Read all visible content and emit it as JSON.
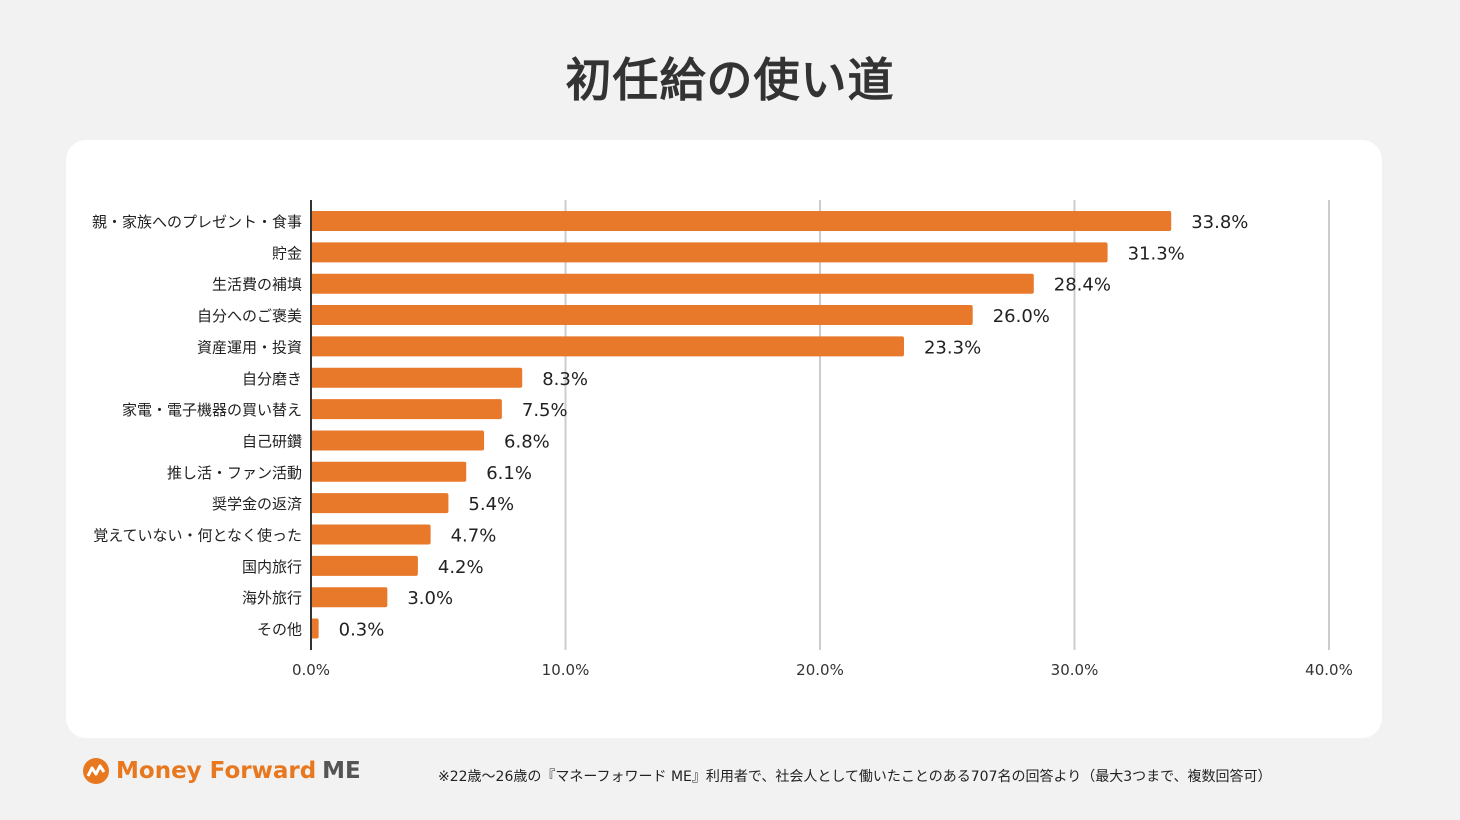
{
  "title": "初任給の使い道",
  "chart_data": {
    "type": "bar",
    "orientation": "horizontal",
    "categories": [
      "親・家族へのプレゼント・食事",
      "貯金",
      "生活費の補填",
      "自分へのご褒美",
      "資産運用・投資",
      "自分磨き",
      "家電・電子機器の買い替え",
      "自己研鑽",
      "推し活・ファン活動",
      "奨学金の返済",
      "覚えていない・何となく使った",
      "国内旅行",
      "海外旅行",
      "その他"
    ],
    "values": [
      33.8,
      31.3,
      28.4,
      26.0,
      23.3,
      8.3,
      7.5,
      6.8,
      6.1,
      5.4,
      4.7,
      4.2,
      3.0,
      0.3
    ],
    "data_labels": [
      "33.8%",
      "31.3%",
      "28.4%",
      "26.0%",
      "23.3%",
      "8.3%",
      "7.5%",
      "6.8%",
      "6.1%",
      "5.4%",
      "4.7%",
      "4.2%",
      "3.0%",
      "0.3%"
    ],
    "xlim": [
      0,
      40
    ],
    "x_ticks": [
      0,
      10,
      20,
      30,
      40
    ],
    "x_tick_labels": [
      "0.0%",
      "10.0%",
      "20.0%",
      "30.0%",
      "40.0%"
    ],
    "grid": true,
    "bar_color": "#e8782a"
  },
  "footer": {
    "logo_brand": "Money Forward",
    "logo_suffix": "ME",
    "note": "※22歳〜26歳の『マネーフォワード ME』利用者で、社会人として働いたことのある707名の回答より（最大3つまで、複数回答可）"
  }
}
